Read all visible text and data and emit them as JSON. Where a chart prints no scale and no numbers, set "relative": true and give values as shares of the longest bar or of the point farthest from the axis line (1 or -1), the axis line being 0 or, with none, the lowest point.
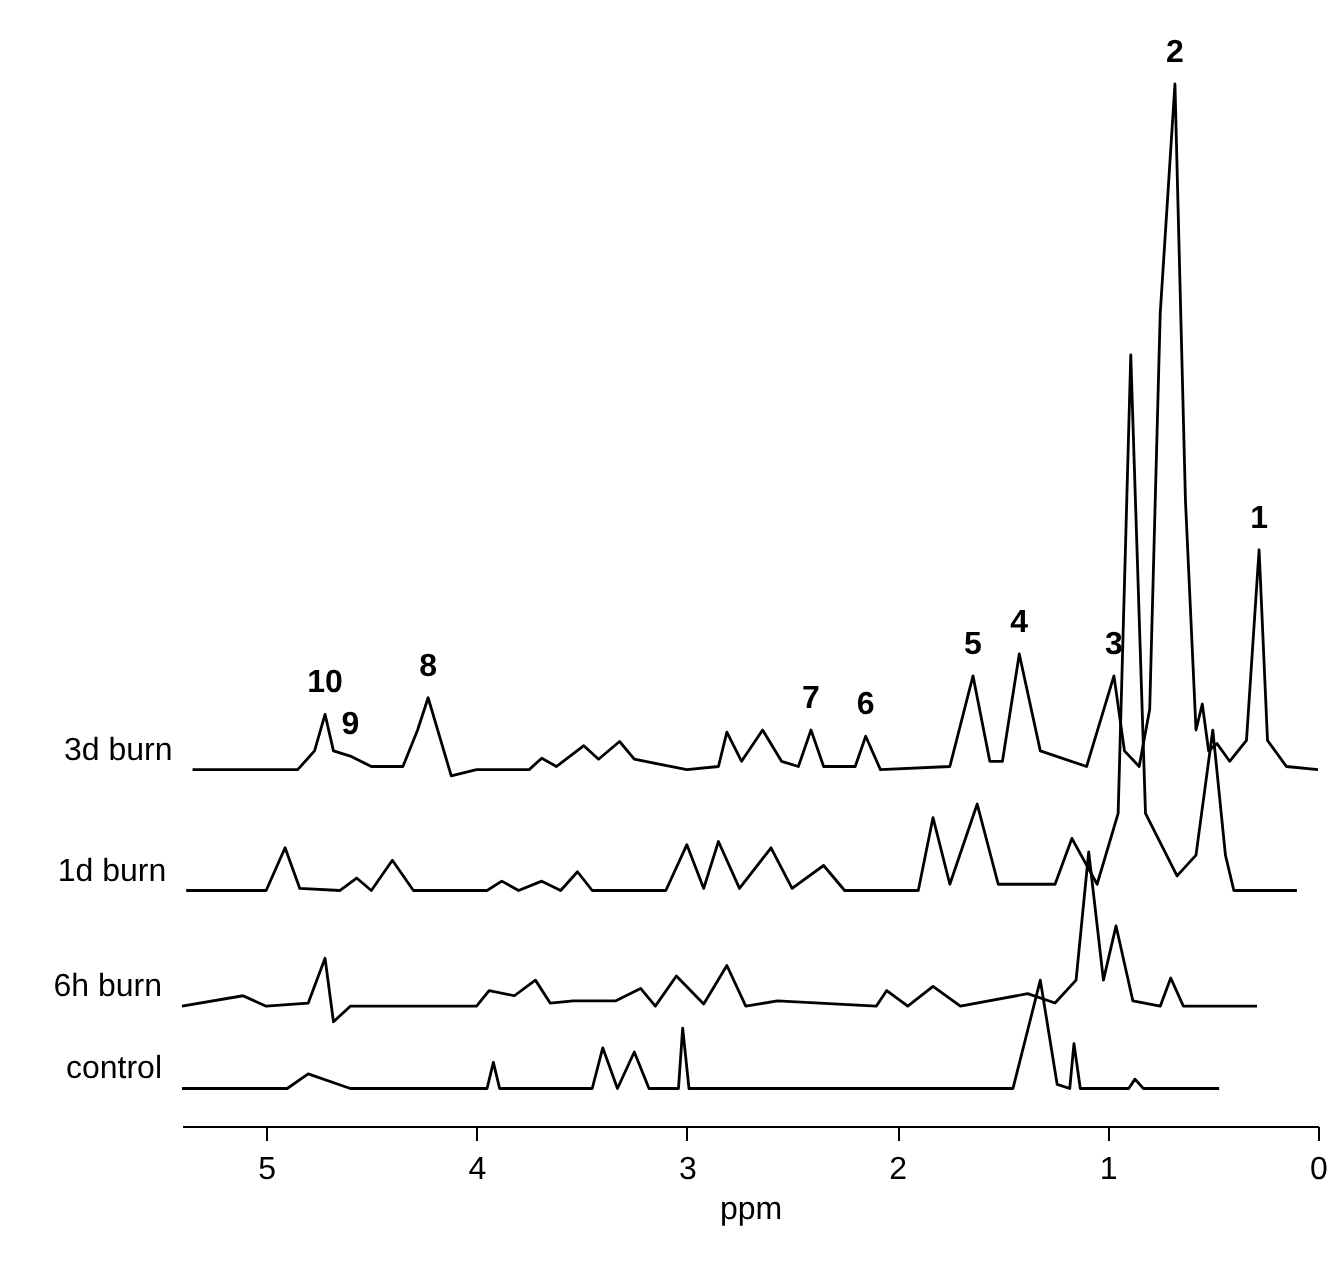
{
  "chart_data": {
    "type": "line",
    "xlabel": "ppm",
    "relative": true,
    "xlim": [
      5.4,
      0
    ],
    "xticks": [
      5,
      4,
      3,
      2,
      1,
      0
    ],
    "grid": false,
    "legend": false,
    "marker": "none",
    "series": [
      {
        "name": "3d burn",
        "color": "#000000",
        "x": [
          5.35,
          4.85,
          4.77,
          4.72,
          4.68,
          4.6,
          4.5,
          4.35,
          4.28,
          4.23,
          4.17,
          4.12,
          4.0,
          3.75,
          3.69,
          3.62,
          3.49,
          3.42,
          3.32,
          3.25,
          3.0,
          2.85,
          2.81,
          2.74,
          2.64,
          2.55,
          2.47,
          2.41,
          2.35,
          2.2,
          2.15,
          2.08,
          1.75,
          1.64,
          1.56,
          1.5,
          1.42,
          1.32,
          1.1,
          0.97,
          0.92,
          0.85,
          0.8,
          0.75,
          0.68,
          0.63,
          0.58,
          0.55,
          0.52,
          0.48,
          0.42,
          0.34,
          0.28,
          0.24,
          0.15,
          0.0
        ],
        "values": [
          0.342,
          0.342,
          0.36,
          0.395,
          0.36,
          0.355,
          0.345,
          0.345,
          0.38,
          0.411,
          0.37,
          0.336,
          0.342,
          0.342,
          0.353,
          0.345,
          0.365,
          0.352,
          0.369,
          0.352,
          0.342,
          0.345,
          0.378,
          0.35,
          0.38,
          0.35,
          0.345,
          0.38,
          0.345,
          0.345,
          0.374,
          0.342,
          0.345,
          0.432,
          0.35,
          0.35,
          0.453,
          0.36,
          0.345,
          0.432,
          0.36,
          0.345,
          0.4,
          0.78,
          1.0,
          0.6,
          0.38,
          0.405,
          0.36,
          0.367,
          0.35,
          0.37,
          0.553,
          0.37,
          0.345,
          0.342
        ]
      },
      {
        "name": "1d burn",
        "color": "#000000",
        "x": [
          5.38,
          5.0,
          4.91,
          4.84,
          4.65,
          4.57,
          4.5,
          4.4,
          4.3,
          3.95,
          3.88,
          3.8,
          3.69,
          3.6,
          3.52,
          3.45,
          3.1,
          3.0,
          2.92,
          2.85,
          2.75,
          2.6,
          2.5,
          2.35,
          2.25,
          1.9,
          1.83,
          1.75,
          1.62,
          1.52,
          1.25,
          1.17,
          1.05,
          0.95,
          0.89,
          0.82,
          0.76,
          0.67,
          0.58,
          0.5,
          0.44,
          0.4,
          0.1
        ],
        "values": [
          0.226,
          0.226,
          0.267,
          0.228,
          0.226,
          0.238,
          0.226,
          0.255,
          0.226,
          0.226,
          0.235,
          0.226,
          0.235,
          0.226,
          0.244,
          0.226,
          0.226,
          0.27,
          0.228,
          0.273,
          0.228,
          0.267,
          0.228,
          0.25,
          0.226,
          0.226,
          0.296,
          0.232,
          0.309,
          0.232,
          0.232,
          0.276,
          0.232,
          0.3,
          0.74,
          0.3,
          0.276,
          0.24,
          0.26,
          0.38,
          0.26,
          0.226,
          0.226
        ]
      },
      {
        "name": "6h burn",
        "color": "#000000",
        "x": [
          5.4,
          5.11,
          5.0,
          4.8,
          4.72,
          4.68,
          4.6,
          4.0,
          3.94,
          3.82,
          3.72,
          3.65,
          3.54,
          3.34,
          3.22,
          3.15,
          3.05,
          2.92,
          2.81,
          2.72,
          2.57,
          2.1,
          2.05,
          1.95,
          1.83,
          1.7,
          1.38,
          1.25,
          1.15,
          1.09,
          1.02,
          0.96,
          0.88,
          0.75,
          0.7,
          0.64,
          0.29
        ],
        "values": [
          0.115,
          0.125,
          0.115,
          0.118,
          0.161,
          0.1,
          0.115,
          0.115,
          0.13,
          0.125,
          0.14,
          0.118,
          0.12,
          0.12,
          0.132,
          0.115,
          0.144,
          0.117,
          0.154,
          0.115,
          0.12,
          0.115,
          0.13,
          0.115,
          0.134,
          0.115,
          0.127,
          0.118,
          0.14,
          0.263,
          0.14,
          0.192,
          0.12,
          0.115,
          0.142,
          0.115,
          0.115
        ]
      },
      {
        "name": "control",
        "color": "#000000",
        "x": [
          5.4,
          4.9,
          4.8,
          4.6,
          3.95,
          3.92,
          3.89,
          3.45,
          3.4,
          3.33,
          3.25,
          3.18,
          3.04,
          3.02,
          2.99,
          1.45,
          1.32,
          1.24,
          1.18,
          1.16,
          1.13,
          0.9,
          0.87,
          0.83,
          0.47
        ],
        "values": [
          0.036,
          0.036,
          0.05,
          0.036,
          0.036,
          0.061,
          0.036,
          0.036,
          0.075,
          0.036,
          0.071,
          0.036,
          0.036,
          0.094,
          0.036,
          0.036,
          0.14,
          0.04,
          0.036,
          0.079,
          0.036,
          0.036,
          0.045,
          0.036,
          0.036
        ]
      }
    ],
    "annotations": [
      {
        "text": "1",
        "x": 0.28,
        "y": 0.553
      },
      {
        "text": "2",
        "x": 0.68,
        "y": 1.0
      },
      {
        "text": "3",
        "x": 0.97,
        "y": 0.432
      },
      {
        "text": "4",
        "x": 1.42,
        "y": 0.453
      },
      {
        "text": "5",
        "x": 1.64,
        "y": 0.432
      },
      {
        "text": "6",
        "x": 2.15,
        "y": 0.374
      },
      {
        "text": "7",
        "x": 2.41,
        "y": 0.38
      },
      {
        "text": "8",
        "x": 4.23,
        "y": 0.411
      },
      {
        "text": "9",
        "x": 4.6,
        "y": 0.355
      },
      {
        "text": "10",
        "x": 4.72,
        "y": 0.395
      }
    ]
  }
}
